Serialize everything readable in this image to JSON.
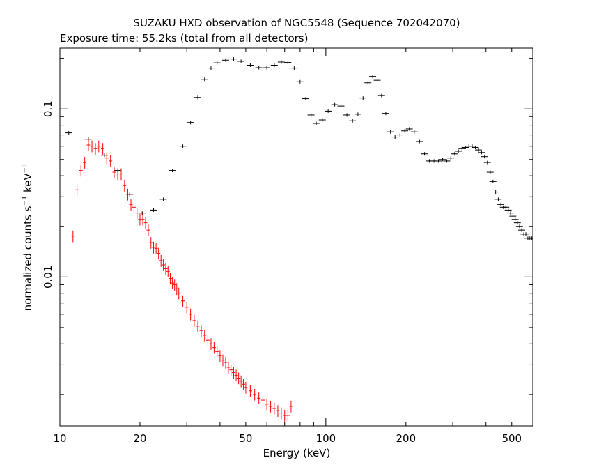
{
  "chart_data": {
    "type": "scatter",
    "title": "SUZAKU HXD observation of NGC5548 (Sequence 702042070)",
    "subtitle": "Exposure time: 55.2ks (total from all detectors)",
    "xlabel": "Energy (keV)",
    "ylabel_text": "normalized counts s",
    "ylabel_mid": " keV",
    "ylabel_sup": "−1",
    "x_scale": "log",
    "y_scale": "log",
    "xlim": [
      10,
      600
    ],
    "ylim": [
      0.0013,
      0.23
    ],
    "x_ticks": [
      {
        "v": 10,
        "label": "10"
      },
      {
        "v": 20,
        "label": "20"
      },
      {
        "v": 50,
        "label": "50"
      },
      {
        "v": 100,
        "label": "100"
      },
      {
        "v": 200,
        "label": "200"
      },
      {
        "v": 500,
        "label": "500"
      }
    ],
    "y_ticks": [
      {
        "v": 0.01,
        "label": "0.01"
      },
      {
        "v": 0.1,
        "label": "0.1"
      }
    ],
    "grid": false,
    "series": [
      {
        "color": "#000000",
        "x_err_rel": 0.03,
        "y_err_rel": 0.01,
        "points": [
          [
            10.8,
            0.072
          ],
          [
            12.8,
            0.066
          ],
          [
            14.7,
            0.053
          ],
          [
            16.5,
            0.043
          ],
          [
            18.3,
            0.031
          ],
          [
            20.4,
            0.024
          ],
          [
            22.5,
            0.025
          ],
          [
            24.5,
            0.029
          ],
          [
            26.5,
            0.043
          ],
          [
            29.0,
            0.06
          ],
          [
            31.0,
            0.083
          ],
          [
            33.0,
            0.117
          ],
          [
            35.0,
            0.15
          ],
          [
            37.0,
            0.175
          ],
          [
            39.0,
            0.188
          ],
          [
            42.0,
            0.195
          ],
          [
            45.0,
            0.198
          ],
          [
            48.0,
            0.192
          ],
          [
            52.0,
            0.182
          ],
          [
            56.0,
            0.176
          ],
          [
            60.0,
            0.176
          ],
          [
            64.0,
            0.182
          ],
          [
            68.0,
            0.19
          ],
          [
            72.0,
            0.189
          ],
          [
            76.0,
            0.175
          ],
          [
            80.0,
            0.145
          ],
          [
            84.0,
            0.115
          ],
          [
            88.0,
            0.092
          ],
          [
            92.0,
            0.082
          ],
          [
            97.0,
            0.086
          ],
          [
            102.0,
            0.097
          ],
          [
            108.0,
            0.106
          ],
          [
            114.0,
            0.104
          ],
          [
            120.0,
            0.092
          ],
          [
            126.0,
            0.085
          ],
          [
            132.0,
            0.093
          ],
          [
            138.0,
            0.116
          ],
          [
            144.0,
            0.143
          ],
          [
            150.0,
            0.156
          ],
          [
            156.0,
            0.148
          ],
          [
            162.0,
            0.12
          ],
          [
            168.0,
            0.094
          ],
          [
            175.0,
            0.073
          ],
          [
            182.0,
            0.068
          ],
          [
            190.0,
            0.07
          ],
          [
            198.0,
            0.074
          ],
          [
            206.0,
            0.076
          ],
          [
            215.0,
            0.073
          ],
          [
            225.0,
            0.064
          ],
          [
            235.0,
            0.054
          ],
          [
            245.0,
            0.049
          ],
          [
            255.0,
            0.049
          ],
          [
            265.0,
            0.049
          ],
          [
            275.0,
            0.05
          ],
          [
            285.0,
            0.049
          ],
          [
            295.0,
            0.051
          ],
          [
            305.0,
            0.054
          ],
          [
            315.0,
            0.056
          ],
          [
            325.0,
            0.058
          ],
          [
            335.0,
            0.059
          ],
          [
            345.0,
            0.06
          ],
          [
            355.0,
            0.06
          ],
          [
            365.0,
            0.059
          ],
          [
            375.0,
            0.057
          ],
          [
            385.0,
            0.055
          ],
          [
            395.0,
            0.052
          ],
          [
            405.0,
            0.048
          ],
          [
            415.0,
            0.042
          ],
          [
            425.0,
            0.037
          ],
          [
            435.0,
            0.032
          ],
          [
            445.0,
            0.029
          ],
          [
            455.0,
            0.027
          ],
          [
            465.0,
            0.026
          ],
          [
            475.0,
            0.026
          ],
          [
            485.0,
            0.025
          ],
          [
            495.0,
            0.024
          ],
          [
            505.0,
            0.023
          ],
          [
            515.0,
            0.022
          ],
          [
            525.0,
            0.021
          ],
          [
            535.0,
            0.02
          ],
          [
            545.0,
            0.019
          ],
          [
            555.0,
            0.018
          ],
          [
            565.0,
            0.018
          ],
          [
            575.0,
            0.017
          ],
          [
            585.0,
            0.017
          ],
          [
            595.0,
            0.017
          ]
        ]
      },
      {
        "color": "#ff0000",
        "x_err_rel": 0.008,
        "y_err_rel": 0.08,
        "points": [
          [
            11.2,
            0.0175
          ],
          [
            11.6,
            0.033
          ],
          [
            12.0,
            0.043
          ],
          [
            12.4,
            0.048
          ],
          [
            12.8,
            0.061
          ],
          [
            13.2,
            0.06
          ],
          [
            13.6,
            0.058
          ],
          [
            14.0,
            0.06
          ],
          [
            14.5,
            0.058
          ],
          [
            15.0,
            0.051
          ],
          [
            15.5,
            0.049
          ],
          [
            16.0,
            0.042
          ],
          [
            16.5,
            0.041
          ],
          [
            17.0,
            0.041
          ],
          [
            17.5,
            0.035
          ],
          [
            18.0,
            0.031
          ],
          [
            18.5,
            0.027
          ],
          [
            19.0,
            0.026
          ],
          [
            19.5,
            0.024
          ],
          [
            20.0,
            0.022
          ],
          [
            20.5,
            0.022
          ],
          [
            21.0,
            0.021
          ],
          [
            21.5,
            0.019
          ],
          [
            22.0,
            0.016
          ],
          [
            22.5,
            0.015
          ],
          [
            23.0,
            0.0148
          ],
          [
            23.5,
            0.0138
          ],
          [
            24.0,
            0.0125
          ],
          [
            24.5,
            0.0118
          ],
          [
            25.0,
            0.0112
          ],
          [
            25.5,
            0.0108
          ],
          [
            26.0,
            0.0098
          ],
          [
            26.5,
            0.0092
          ],
          [
            27.0,
            0.009
          ],
          [
            27.5,
            0.0085
          ],
          [
            28.0,
            0.008
          ],
          [
            29.0,
            0.0072
          ],
          [
            30.0,
            0.0066
          ],
          [
            31.0,
            0.006
          ],
          [
            32.0,
            0.0055
          ],
          [
            33.0,
            0.0051
          ],
          [
            34.0,
            0.0048
          ],
          [
            35.0,
            0.0045
          ],
          [
            36.0,
            0.0042
          ],
          [
            37.0,
            0.004
          ],
          [
            38.0,
            0.0038
          ],
          [
            39.0,
            0.0036
          ],
          [
            40.0,
            0.0034
          ],
          [
            41.0,
            0.0032
          ],
          [
            42.0,
            0.0031
          ],
          [
            43.0,
            0.0029
          ],
          [
            44.0,
            0.0028
          ],
          [
            45.0,
            0.0027
          ],
          [
            46.0,
            0.0026
          ],
          [
            47.0,
            0.0025
          ],
          [
            48.0,
            0.0024
          ],
          [
            49.0,
            0.0023
          ],
          [
            50.0,
            0.0022
          ],
          [
            52.0,
            0.0021
          ],
          [
            54.0,
            0.002
          ],
          [
            56.0,
            0.0019
          ],
          [
            58.0,
            0.00185
          ],
          [
            60.0,
            0.00175
          ],
          [
            62.0,
            0.0017
          ],
          [
            64.0,
            0.00165
          ],
          [
            66.0,
            0.0016
          ],
          [
            68.0,
            0.00155
          ],
          [
            70.0,
            0.0015
          ],
          [
            72.0,
            0.0015
          ],
          [
            74.0,
            0.0017
          ]
        ]
      }
    ]
  }
}
